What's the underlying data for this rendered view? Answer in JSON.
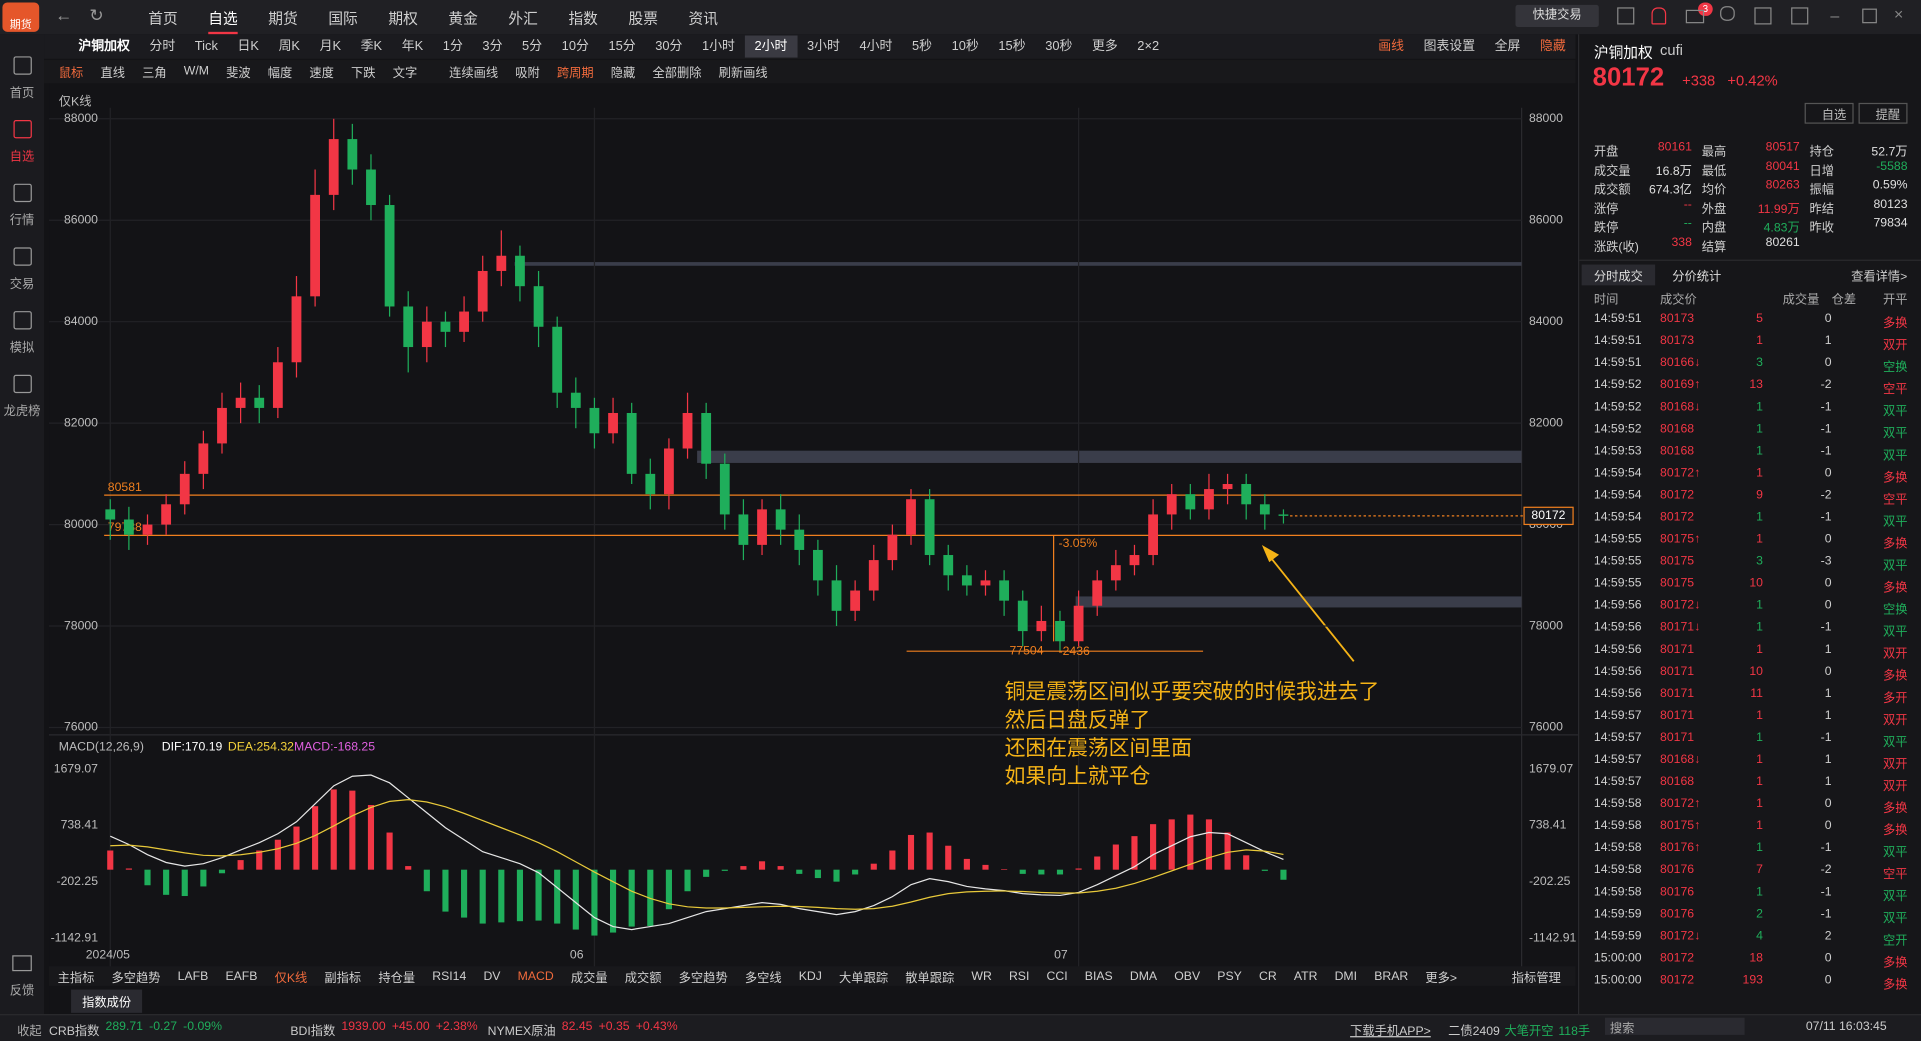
{
  "logo_text": "期货",
  "nav": {
    "items": [
      "首页",
      "自选",
      "期货",
      "国际",
      "期权",
      "黄金",
      "外汇",
      "指数",
      "股票",
      "资讯"
    ],
    "active": 1,
    "quick_trade": "快捷交易",
    "badge": "3"
  },
  "sidebar": {
    "items": [
      "首页",
      "自选",
      "行情",
      "交易",
      "模拟",
      "龙虎榜"
    ],
    "active": 1,
    "feedback": "反馈"
  },
  "toolbar": {
    "symbol": "沪铜加权",
    "periods": [
      "分时",
      "Tick",
      "日K",
      "周K",
      "月K",
      "季K",
      "年K",
      "1分",
      "3分",
      "5分",
      "10分",
      "15分",
      "30分",
      "1小时",
      "2小时",
      "3小时",
      "4小时",
      "5秒",
      "10秒",
      "15秒",
      "30秒"
    ],
    "active": 14,
    "more": "更多",
    "layout": "2×2",
    "right": [
      "画线",
      "图表设置",
      "全屏",
      "隐藏"
    ]
  },
  "draw_tools": {
    "items": [
      "鼠标",
      "直线",
      "三角",
      "W/M",
      "斐波",
      "幅度",
      "速度",
      "下跌",
      "文字",
      "连续画线",
      "吸附",
      "跨周期",
      "隐藏",
      "全部删除",
      "刷新画线"
    ],
    "active": [
      0,
      11
    ]
  },
  "chart_data": [
    {
      "type": "candlestick",
      "label": "仅K线",
      "categories": [
        "2024/05",
        null,
        null,
        null,
        null,
        null,
        null,
        null,
        null,
        null,
        null,
        null,
        null,
        null,
        null,
        null,
        null,
        null,
        null,
        null,
        null,
        null,
        null,
        null,
        null,
        null,
        "06",
        null,
        null,
        null,
        null,
        null,
        null,
        null,
        null,
        null,
        null,
        null,
        null,
        null,
        null,
        null,
        null,
        null,
        null,
        null,
        null,
        null,
        null,
        null,
        null,
        null,
        "07",
        null,
        null,
        null,
        null,
        null,
        null,
        null,
        null,
        null,
        null,
        null
      ],
      "open": [
        80300,
        80100,
        79800,
        80000,
        80400,
        81000,
        81600,
        82300,
        82500,
        82300,
        83200,
        84500,
        86500,
        87600,
        87000,
        86300,
        84300,
        83500,
        84000,
        83800,
        84200,
        85000,
        85300,
        84700,
        83900,
        82600,
        82300,
        81800,
        82200,
        81000,
        80600,
        81500,
        82200,
        81200,
        80200,
        79600,
        80300,
        79900,
        79500,
        78900,
        78300,
        78700,
        79300,
        79800,
        80500,
        79400,
        79000,
        78800,
        78900,
        78500,
        77900,
        78100,
        77700,
        78400,
        78900,
        79200,
        79400,
        80200,
        80600,
        80300,
        80700,
        80800,
        80400,
        80200
      ],
      "high": [
        80500,
        80350,
        80200,
        80600,
        81250,
        81850,
        82600,
        82800,
        82750,
        83500,
        84900,
        87000,
        88000,
        87900,
        87300,
        86500,
        84600,
        84300,
        84200,
        84500,
        85300,
        85800,
        85500,
        85000,
        84100,
        82900,
        82500,
        82500,
        82400,
        81300,
        81700,
        82600,
        82400,
        81400,
        80500,
        80500,
        80600,
        80200,
        79700,
        79200,
        78900,
        79600,
        80000,
        80700,
        80700,
        79600,
        79200,
        79100,
        79100,
        78700,
        78400,
        78300,
        78700,
        79100,
        79500,
        79600,
        80500,
        80800,
        80800,
        81000,
        81000,
        81000,
        80600,
        80300
      ],
      "low": [
        79700,
        79500,
        79600,
        79800,
        80200,
        80700,
        81400,
        82000,
        82000,
        82100,
        82900,
        84300,
        86200,
        86700,
        86000,
        84100,
        83000,
        83200,
        83500,
        83600,
        84000,
        84700,
        84400,
        83500,
        82300,
        81900,
        81500,
        81600,
        80800,
        80300,
        80300,
        81300,
        80900,
        79900,
        79300,
        79400,
        79600,
        79200,
        78600,
        78000,
        78100,
        78500,
        79100,
        79600,
        79200,
        78700,
        78600,
        78600,
        78200,
        77600,
        77700,
        77504,
        77600,
        78200,
        78700,
        79000,
        79200,
        79900,
        80100,
        80100,
        80400,
        80100,
        79900,
        80020
      ],
      "close": [
        80100,
        79800,
        80000,
        80400,
        81000,
        81600,
        82300,
        82500,
        82300,
        83200,
        84500,
        86500,
        87600,
        87000,
        86300,
        84300,
        83500,
        84000,
        83800,
        84200,
        85000,
        85300,
        84700,
        83900,
        82600,
        82300,
        81800,
        82200,
        81000,
        80600,
        81500,
        82200,
        81200,
        80200,
        79600,
        80300,
        79900,
        79500,
        78900,
        78300,
        78700,
        79300,
        79800,
        80500,
        79400,
        79000,
        78800,
        78900,
        78500,
        77900,
        78100,
        77700,
        78400,
        78900,
        79200,
        79400,
        80200,
        80600,
        80300,
        80700,
        80800,
        80400,
        80200,
        80172
      ],
      "ylim": [
        76000,
        88000
      ],
      "yticks": [
        76000,
        78000,
        80000,
        82000,
        84000,
        86000,
        88000
      ],
      "grid": true,
      "up_color": "#f23645",
      "down_color": "#1fae5b",
      "levels": [
        80581,
        79788
      ],
      "level_color": "#f07f1e",
      "last": 80172,
      "measure": {
        "pct": "-3.05%",
        "diff": -2436,
        "low": 77504
      },
      "annotation": [
        "铜是震荡区间似乎要突破的时候我进去了",
        "然后日盘反弹了",
        "还困在震荡区间里面",
        "如果向上就平仓"
      ],
      "annotation_color": "#f5b316"
    },
    {
      "type": "macd",
      "title": "MACD(12,26,9)",
      "legend": [
        {
          "label": "DIF:170.19",
          "color": "#ffffff"
        },
        {
          "label": "DEA:254.32",
          "color": "#f5d33c"
        },
        {
          "label": "MACD:-168.25",
          "color": "#e060e0"
        }
      ],
      "series": [
        {
          "color": "#e6e6e6",
          "values": [
            560,
            420,
            250,
            120,
            60,
            100,
            200,
            330,
            450,
            600,
            800,
            1100,
            1400,
            1560,
            1580,
            1450,
            1200,
            950,
            700,
            500,
            300,
            200,
            100,
            -50,
            -300,
            -550,
            -800,
            -950,
            -1000,
            -950,
            -900,
            -800,
            -700,
            -650,
            -600,
            -550,
            -580,
            -650,
            -700,
            -750,
            -700,
            -600,
            -450,
            -250,
            -150,
            -200,
            -280,
            -320,
            -350,
            -400,
            -420,
            -430,
            -380,
            -250,
            -100,
            50,
            250,
            400,
            550,
            620,
            600,
            450,
            300,
            170.19
          ]
        },
        {
          "color": "#e8c93a",
          "values": [
            400,
            410,
            380,
            330,
            280,
            240,
            230,
            250,
            290,
            350,
            440,
            570,
            730,
            900,
            1040,
            1140,
            1170,
            1130,
            1050,
            940,
            820,
            700,
            580,
            450,
            300,
            130,
            -40,
            -200,
            -360,
            -480,
            -570,
            -620,
            -640,
            -640,
            -630,
            -620,
            -610,
            -615,
            -630,
            -650,
            -660,
            -650,
            -610,
            -540,
            -460,
            -400,
            -370,
            -360,
            -355,
            -365,
            -380,
            -390,
            -390,
            -360,
            -310,
            -230,
            -130,
            -20,
            90,
            200,
            290,
            330,
            310,
            254.32
          ]
        }
      ],
      "histogram": [
        320,
        20,
        -260,
        -420,
        -440,
        -280,
        -60,
        160,
        320,
        500,
        720,
        1060,
        1340,
        1320,
        1080,
        620,
        60,
        -360,
        -700,
        -800,
        -900,
        -880,
        -860,
        -850,
        -900,
        -1000,
        -1100,
        -1050,
        -950,
        -940,
        -660,
        -360,
        -120,
        -20,
        60,
        140,
        60,
        -70,
        -140,
        -200,
        -80,
        100,
        320,
        580,
        620,
        400,
        180,
        80,
        10,
        -70,
        -80,
        -80,
        20,
        220,
        420,
        560,
        760,
        840,
        920,
        840,
        620,
        240,
        -20,
        -168.25
      ],
      "ylim": [
        -1142.91,
        1679.07
      ],
      "yticks": [
        1679.07,
        738.41,
        -202.25,
        -1142.91
      ],
      "up_color": "#f23645",
      "down_color": "#1fae5b"
    }
  ],
  "indicator_tabs": {
    "items": [
      "主指标",
      "多空趋势",
      "LAFB",
      "EAFB",
      "仅K线",
      "副指标",
      "持仓量",
      "RSI14",
      "DV",
      "MACD",
      "成交量",
      "成交额",
      "多空趋势",
      "多空线",
      "KDJ",
      "大单跟踪",
      "散单跟踪",
      "WR",
      "RSI",
      "CCI",
      "BIAS",
      "DMA",
      "OBV",
      "PSY",
      "CR",
      "ATR",
      "DMI",
      "BRAR",
      "更多>"
    ],
    "active": [
      4,
      9
    ],
    "manage": "指标管理",
    "sub_tab": "指数成份"
  },
  "status_bar": {
    "collapse": "收起",
    "tickers": [
      {
        "name": "CRB指数",
        "price": "289.71",
        "chg": "-0.27",
        "pct": "-0.09%",
        "color": "#1fae5b"
      },
      {
        "name": "BDI指数",
        "price": "1939.00",
        "chg": "+45.00",
        "pct": "+2.38%",
        "color": "#f23645"
      },
      {
        "name": "NYMEX原油",
        "price": "82.45",
        "chg": "+0.35",
        "pct": "+0.43%",
        "color": "#f23645"
      }
    ],
    "download": "下载手机APP>",
    "contract": "二债2409",
    "event": "大笔开空",
    "event_qty": "118手",
    "search": "搜索",
    "time": "07/11 16:03:45"
  },
  "quote": {
    "name": "沪铜加权",
    "code": "cufi",
    "price": "80172",
    "chg": "+338",
    "pct": "+0.42%",
    "color": "#f23645",
    "buttons": [
      "自选",
      "提醒"
    ],
    "cells": [
      {
        "label": "开盘",
        "value": "80161",
        "color": "#f23645"
      },
      {
        "label": "最高",
        "value": "80517",
        "color": "#f23645"
      },
      {
        "label": "持仓",
        "value": "52.7万",
        "color": "#e0e0e0"
      },
      {
        "label": "成交量",
        "value": "16.8万",
        "color": "#e0e0e0"
      },
      {
        "label": "最低",
        "value": "80041",
        "color": "#f23645"
      },
      {
        "label": "日增",
        "value": "-5588",
        "color": "#1fae5b"
      },
      {
        "label": "成交额",
        "value": "674.3亿",
        "color": "#e0e0e0"
      },
      {
        "label": "均价",
        "value": "80263",
        "color": "#f23645"
      },
      {
        "label": "振幅",
        "value": "0.59%",
        "color": "#e0e0e0"
      },
      {
        "label": "涨停",
        "value": "--",
        "color": "#f23645"
      },
      {
        "label": "外盘",
        "value": "11.99万",
        "color": "#f23645"
      },
      {
        "label": "昨结",
        "value": "80123",
        "color": "#e0e0e0"
      },
      {
        "label": "跌停",
        "value": "--",
        "color": "#1fae5b"
      },
      {
        "label": "内盘",
        "value": "4.83万",
        "color": "#1fae5b"
      },
      {
        "label": "昨收",
        "value": "79834",
        "color": "#e0e0e0"
      },
      {
        "label": "涨跌(收)",
        "value": "338",
        "color": "#f23645"
      },
      {
        "label": "结算",
        "value": "80261",
        "color": "#e0e0e0"
      }
    ]
  },
  "trades": {
    "tabs": [
      "分时成交",
      "分价统计"
    ],
    "details": "查看详情>",
    "headers": [
      "时间",
      "成交价",
      "成交量",
      "仓差",
      "开平"
    ],
    "price_color": "#f23645",
    "type_colors": {
      "多换": "#f23645",
      "双开": "#f23645",
      "空换": "#1fae5b",
      "空平": "#f23645",
      "双平": "#1fae5b",
      "多开": "#f23645",
      "空开": "#1fae5b"
    },
    "rows": [
      [
        "14:59:51",
        "80173",
        "5",
        "0",
        "多换"
      ],
      [
        "14:59:51",
        "80173",
        "1",
        "1",
        "双开"
      ],
      [
        "14:59:51",
        "80166↓",
        "3",
        "0",
        "空换"
      ],
      [
        "14:59:52",
        "80169↑",
        "13",
        "-2",
        "空平"
      ],
      [
        "14:59:52",
        "80168↓",
        "1",
        "-1",
        "双平"
      ],
      [
        "14:59:52",
        "80168",
        "1",
        "-1",
        "双平"
      ],
      [
        "14:59:53",
        "80168",
        "1",
        "-1",
        "双平"
      ],
      [
        "14:59:54",
        "80172↑",
        "1",
        "0",
        "多换"
      ],
      [
        "14:59:54",
        "80172",
        "9",
        "-2",
        "空平"
      ],
      [
        "14:59:54",
        "80172",
        "1",
        "-1",
        "双平"
      ],
      [
        "14:59:55",
        "80175↑",
        "1",
        "0",
        "多换"
      ],
      [
        "14:59:55",
        "80175",
        "3",
        "-3",
        "双平"
      ],
      [
        "14:59:55",
        "80175",
        "10",
        "0",
        "多换"
      ],
      [
        "14:59:56",
        "80172↓",
        "1",
        "0",
        "空换"
      ],
      [
        "14:59:56",
        "80171↓",
        "1",
        "-1",
        "双平"
      ],
      [
        "14:59:56",
        "80171",
        "1",
        "1",
        "双开"
      ],
      [
        "14:59:56",
        "80171",
        "10",
        "0",
        "多换"
      ],
      [
        "14:59:56",
        "80171",
        "11",
        "1",
        "多开"
      ],
      [
        "14:59:57",
        "80171",
        "1",
        "1",
        "双开"
      ],
      [
        "14:59:57",
        "80171",
        "1",
        "-1",
        "双平"
      ],
      [
        "14:59:57",
        "80168↓",
        "1",
        "1",
        "双开"
      ],
      [
        "14:59:57",
        "80168",
        "1",
        "1",
        "双开"
      ],
      [
        "14:59:58",
        "80172↑",
        "1",
        "0",
        "多换"
      ],
      [
        "14:59:58",
        "80175↑",
        "1",
        "0",
        "多换"
      ],
      [
        "14:59:58",
        "80176↑",
        "1",
        "-1",
        "双平"
      ],
      [
        "14:59:58",
        "80176",
        "7",
        "-2",
        "空平"
      ],
      [
        "14:59:58",
        "80176",
        "1",
        "-1",
        "双平"
      ],
      [
        "14:59:59",
        "80176",
        "2",
        "-1",
        "双平"
      ],
      [
        "14:59:59",
        "80172↓",
        "4",
        "2",
        "空开"
      ],
      [
        "15:00:00",
        "80172",
        "18",
        "0",
        "多换"
      ],
      [
        "15:00:00",
        "80172",
        "193",
        "0",
        "多换"
      ]
    ]
  }
}
